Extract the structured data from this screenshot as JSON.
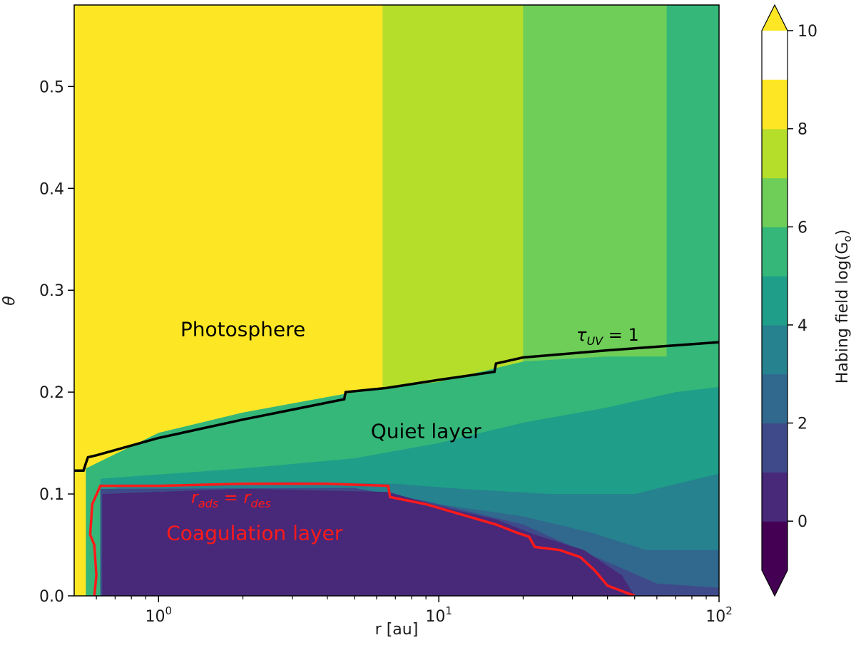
{
  "chart_data": {
    "type": "heatmap",
    "xlabel": "r [au]",
    "ylabel": "θ",
    "x_scale": "log",
    "xlim": [
      0.5,
      100
    ],
    "ylim": [
      0.0,
      0.58
    ],
    "x_ticks": [
      {
        "value": 1,
        "base": "10",
        "exp": "0"
      },
      {
        "value": 10,
        "base": "10",
        "exp": "1"
      },
      {
        "value": 100,
        "base": "10",
        "exp": "2"
      }
    ],
    "y_ticks": [
      {
        "value": 0.0,
        "label": "0.0"
      },
      {
        "value": 0.1,
        "label": "0.1"
      },
      {
        "value": 0.2,
        "label": "0.2"
      },
      {
        "value": 0.3,
        "label": "0.3"
      },
      {
        "value": 0.4,
        "label": "0.4"
      },
      {
        "value": 0.5,
        "label": "0.5"
      }
    ],
    "colorbar": {
      "label": "Habing field log(G",
      "label_subscript": "o",
      "label_suffix": ")",
      "levels": [
        -1,
        0,
        1,
        2,
        3,
        4,
        5,
        6,
        7,
        8,
        9,
        10
      ],
      "colors": [
        "#440154",
        "#482878",
        "#3e4a89",
        "#31688e",
        "#26828e",
        "#1f9e89",
        "#35b779",
        "#6ece58",
        "#b5de2b",
        "#fde725"
      ],
      "extend": "both",
      "under_color": "#440154",
      "over_color": "#fde725",
      "ticks": [
        {
          "value": 0,
          "label": "0"
        },
        {
          "value": 2,
          "label": "2"
        },
        {
          "value": 4,
          "label": "4"
        },
        {
          "value": 6,
          "label": "6"
        },
        {
          "value": 8,
          "label": "8"
        },
        {
          "value": 10,
          "label": "10"
        }
      ]
    },
    "field_bands": [
      {
        "r_start": 0.5,
        "r_end": 0.58,
        "level": 10
      },
      {
        "r_start": 0.58,
        "r_end": 2.0,
        "level": 9
      },
      {
        "r_start": 2.0,
        "r_end": 6.3,
        "level": 8
      },
      {
        "r_start": 6.3,
        "r_end": 20,
        "level": 7
      },
      {
        "r_start": 20,
        "r_end": 65,
        "level": 6
      },
      {
        "r_start": 65,
        "r_end": 100,
        "level": 5
      }
    ],
    "interior_regions": [
      {
        "level": 5,
        "points": [
          [
            0.55,
            0.125
          ],
          [
            1,
            0.16
          ],
          [
            2,
            0.18
          ],
          [
            5,
            0.2
          ],
          [
            10,
            0.21
          ],
          [
            20,
            0.23
          ],
          [
            40,
            0.235
          ],
          [
            100,
            0.235
          ],
          [
            100,
            0.0
          ],
          [
            0.55,
            0.0
          ]
        ]
      },
      {
        "level": 4,
        "points": [
          [
            0.62,
            0.115
          ],
          [
            2,
            0.125
          ],
          [
            5,
            0.135
          ],
          [
            10,
            0.15
          ],
          [
            20,
            0.17
          ],
          [
            40,
            0.185
          ],
          [
            70,
            0.2
          ],
          [
            100,
            0.205
          ],
          [
            100,
            0.0
          ],
          [
            0.62,
            0.0
          ]
        ]
      },
      {
        "level": 3,
        "points": [
          [
            0.7,
            0.108
          ],
          [
            3,
            0.112
          ],
          [
            7,
            0.11
          ],
          [
            12,
            0.105
          ],
          [
            25,
            0.1
          ],
          [
            50,
            0.1
          ],
          [
            100,
            0.12
          ],
          [
            100,
            0.0
          ],
          [
            0.7,
            0.0
          ]
        ]
      },
      {
        "level": 2,
        "points": [
          [
            6,
            0.1
          ],
          [
            10,
            0.09
          ],
          [
            20,
            0.078
          ],
          [
            35,
            0.062
          ],
          [
            55,
            0.045
          ],
          [
            100,
            0.045
          ],
          [
            100,
            0.0
          ],
          [
            6,
            0.0
          ]
        ]
      },
      {
        "level": 1,
        "points": [
          [
            0.62,
            0.105
          ],
          [
            5,
            0.106
          ],
          [
            9,
            0.093
          ],
          [
            20,
            0.07
          ],
          [
            35,
            0.04
          ],
          [
            60,
            0.012
          ],
          [
            100,
            0.008
          ],
          [
            100,
            0.0
          ],
          [
            0.62,
            0.0
          ]
        ]
      },
      {
        "level": 0,
        "points": [
          [
            0.63,
            0.1
          ],
          [
            2,
            0.105
          ],
          [
            6.6,
            0.102
          ],
          [
            10,
            0.088
          ],
          [
            16,
            0.075
          ],
          [
            22,
            0.06
          ],
          [
            33,
            0.045
          ],
          [
            45,
            0.02
          ],
          [
            50,
            0.0
          ],
          [
            0.63,
            0.0
          ]
        ]
      }
    ],
    "tau_uv_contour": {
      "label_base": "τ",
      "label_subscript": "UV",
      "label_rhs": " = 1",
      "color": "#000000",
      "points": [
        [
          0.5,
          0.123
        ],
        [
          0.54,
          0.123
        ],
        [
          0.55,
          0.13
        ],
        [
          0.56,
          0.136
        ],
        [
          0.6,
          0.138
        ],
        [
          1.0,
          0.155
        ],
        [
          2.0,
          0.173
        ],
        [
          4.6,
          0.193
        ],
        [
          4.65,
          0.2
        ],
        [
          6.5,
          0.204
        ],
        [
          10,
          0.212
        ],
        [
          15.8,
          0.22
        ],
        [
          16,
          0.228
        ],
        [
          20,
          0.234
        ],
        [
          40,
          0.241
        ],
        [
          100,
          0.249
        ]
      ]
    },
    "radsrdes_contour": {
      "label_base_1": "r",
      "label_sub_1": "ads",
      "label_eq": " = ",
      "label_base_2": "r",
      "label_sub_2": "des",
      "color": "#ff1a1a",
      "points": [
        [
          0.59,
          0.0
        ],
        [
          0.6,
          0.02
        ],
        [
          0.59,
          0.05
        ],
        [
          0.57,
          0.06
        ],
        [
          0.58,
          0.09
        ],
        [
          0.62,
          0.108
        ],
        [
          1.0,
          0.108
        ],
        [
          2.0,
          0.11
        ],
        [
          4.0,
          0.11
        ],
        [
          6.6,
          0.108
        ],
        [
          6.7,
          0.097
        ],
        [
          9,
          0.09
        ],
        [
          12,
          0.08
        ],
        [
          16,
          0.07
        ],
        [
          19,
          0.062
        ],
        [
          21,
          0.058
        ],
        [
          22,
          0.048
        ],
        [
          27,
          0.045
        ],
        [
          32,
          0.038
        ],
        [
          36,
          0.025
        ],
        [
          40,
          0.01
        ],
        [
          50,
          0.0
        ]
      ]
    },
    "annotations": [
      {
        "text": "Photosphere",
        "r": 2.0,
        "theta": 0.255,
        "color": "#000000"
      },
      {
        "text": "Quiet layer",
        "r": 9.0,
        "theta": 0.155,
        "color": "#000000"
      },
      {
        "text": "Coagulation layer",
        "r": 2.2,
        "theta": 0.055,
        "color": "#ff1a1a"
      }
    ]
  }
}
